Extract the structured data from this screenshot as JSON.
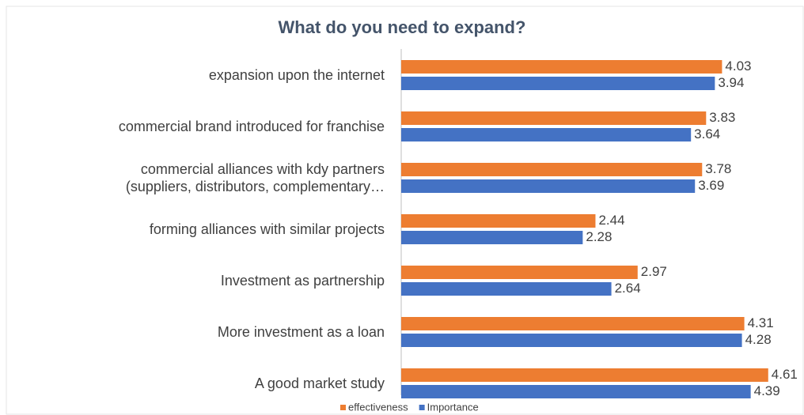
{
  "chart_data": {
    "type": "hbar",
    "title": "What do you need to expand?",
    "categories": [
      "expansion upon the internet",
      "commercial brand introduced for franchise",
      "commercial alliances with kdy partners\n(suppliers, distributors, complementary…",
      "forming alliances with similar projects",
      "Investment as partnership",
      "More investment as a loan",
      "A good market study"
    ],
    "series": [
      {
        "name": "effectiveness",
        "color": "#ed7d31",
        "values": [
          4.03,
          3.83,
          3.78,
          2.44,
          2.97,
          4.31,
          4.61
        ]
      },
      {
        "name": "Importance",
        "color": "#4472c4",
        "values": [
          3.94,
          3.64,
          3.69,
          2.28,
          2.64,
          4.28,
          4.39
        ]
      }
    ],
    "xlim": [
      0,
      5
    ]
  }
}
